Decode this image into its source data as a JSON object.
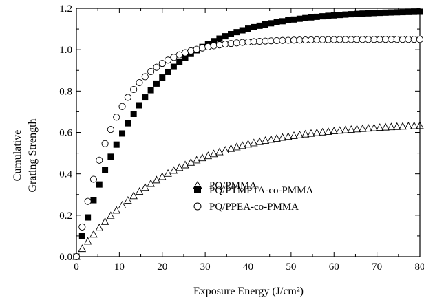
{
  "chart_data": {
    "type": "scatter",
    "title": "",
    "xlabel": "Exposure Energy (J/cm²)",
    "ylabel": "Cumulative Grating Strength",
    "ylabel_lines": [
      "Cumulative",
      "Grating Strength"
    ],
    "xlim": [
      0,
      80
    ],
    "ylim": [
      0,
      1.2
    ],
    "x_ticks": [
      "0",
      "10",
      "20",
      "30",
      "40",
      "50",
      "60",
      "70",
      "80"
    ],
    "y_ticks": [
      "0.0",
      "0.2",
      "0.4",
      "0.6",
      "0.8",
      "1.0",
      "1.2"
    ],
    "grid": false,
    "legend_position": "lower-right",
    "series": [
      {
        "name": "PQ/PMMA",
        "marker": "open-triangle",
        "model": {
          "amplitude": 0.65,
          "k": 0.045,
          "power": 1.0
        }
      },
      {
        "name": "PQ/PTMPTA-co-PMMA",
        "marker": "filled-square",
        "model": {
          "amplitude": 1.19,
          "k": 0.065,
          "power": 1.0
        }
      },
      {
        "name": "PQ/PPEA-co-PMMA",
        "marker": "open-circle",
        "model": {
          "amplitude": 1.05,
          "k": 0.11,
          "power": 1.0
        }
      }
    ]
  }
}
